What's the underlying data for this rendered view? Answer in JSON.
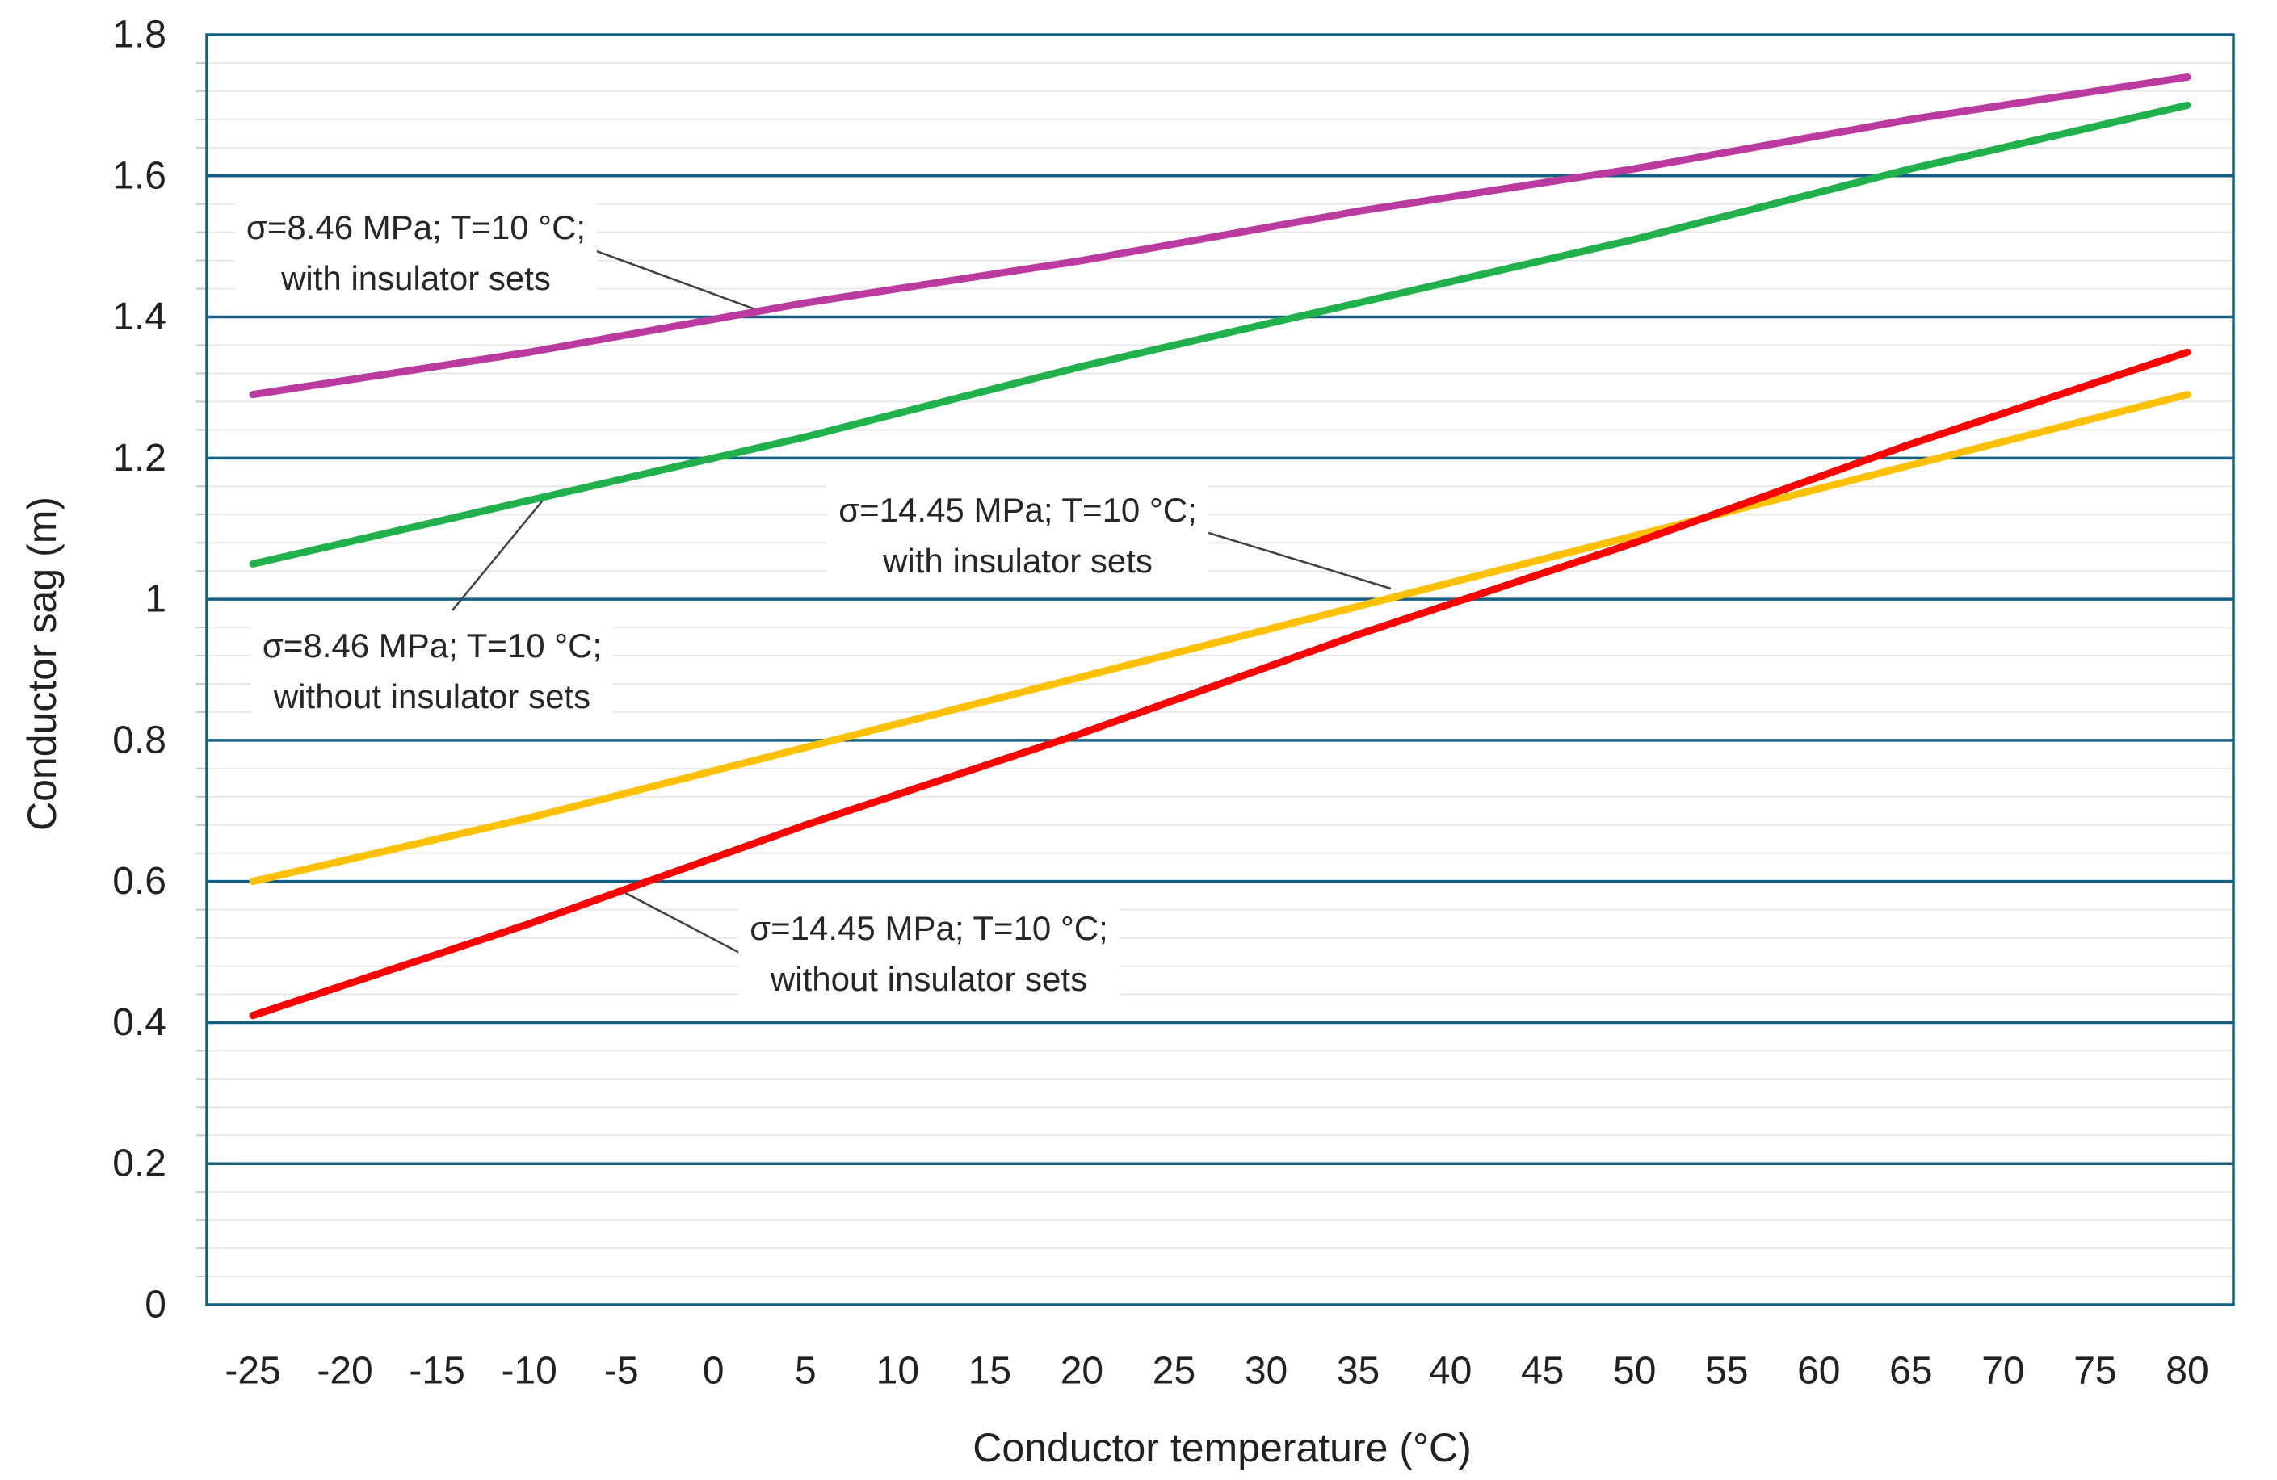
{
  "chart_data": {
    "type": "line",
    "title": "",
    "xlabel": "Conductor temperature (°C)",
    "ylabel": "Conductor sag (m)",
    "xlim": [
      -27.5,
      82.5
    ],
    "ylim": [
      0,
      1.8
    ],
    "x_ticks": [
      -25,
      -20,
      -15,
      -10,
      -5,
      0,
      5,
      10,
      15,
      20,
      25,
      30,
      35,
      40,
      45,
      50,
      55,
      60,
      65,
      70,
      75,
      80
    ],
    "y_ticks": [
      0,
      0.2,
      0.4,
      0.6,
      0.8,
      1,
      1.2,
      1.4,
      1.6,
      1.8
    ],
    "minor_y_step": 0.04,
    "grid": "horizontal-major-and-minor",
    "legend_position": "none",
    "grid_major_color": "#156082",
    "grid_minor_color": "#E8E8E8",
    "tick_stub_color": "#C9C9C9",
    "leader_color": "#404040",
    "text_color": "#212121",
    "x": [
      -25,
      -10,
      5,
      20,
      35,
      50,
      65,
      80
    ],
    "series": [
      {
        "name": "σ=8.46 MPa; T=10 °C; with insulator sets",
        "color": "#BB3AA0",
        "values": [
          1.29,
          1.35,
          1.42,
          1.48,
          1.55,
          1.61,
          1.68,
          1.74
        ]
      },
      {
        "name": "σ=8.46 MPa; T=10 °C; without insulator sets",
        "color": "#20B14C",
        "values": [
          1.05,
          1.14,
          1.23,
          1.33,
          1.42,
          1.51,
          1.61,
          1.7
        ]
      },
      {
        "name": "σ=14.45 MPa; T=10 °C; with insulator sets",
        "color": "#FFC000",
        "values": [
          0.6,
          0.69,
          0.79,
          0.89,
          0.99,
          1.09,
          1.19,
          1.29
        ]
      },
      {
        "name": "σ=14.45 MPa; T=10 °C; without insulator sets",
        "color": "#FF0000",
        "values": [
          0.41,
          0.54,
          0.68,
          0.81,
          0.95,
          1.08,
          1.22,
          1.35
        ]
      }
    ],
    "annotations": [
      {
        "line1": "σ=8.46 MPa; T=10 °C;",
        "line2": "with insulator sets",
        "series": 0
      },
      {
        "line1": "σ=8.46 MPa; T=10 °C;",
        "line2": "without insulator sets",
        "series": 1
      },
      {
        "line1": "σ=14.45 MPa; T=10 °C;",
        "line2": "with insulator sets",
        "series": 2
      },
      {
        "line1": "σ=14.45 MPa; T=10 °C;",
        "line2": "without insulator sets",
        "series": 3
      }
    ]
  }
}
